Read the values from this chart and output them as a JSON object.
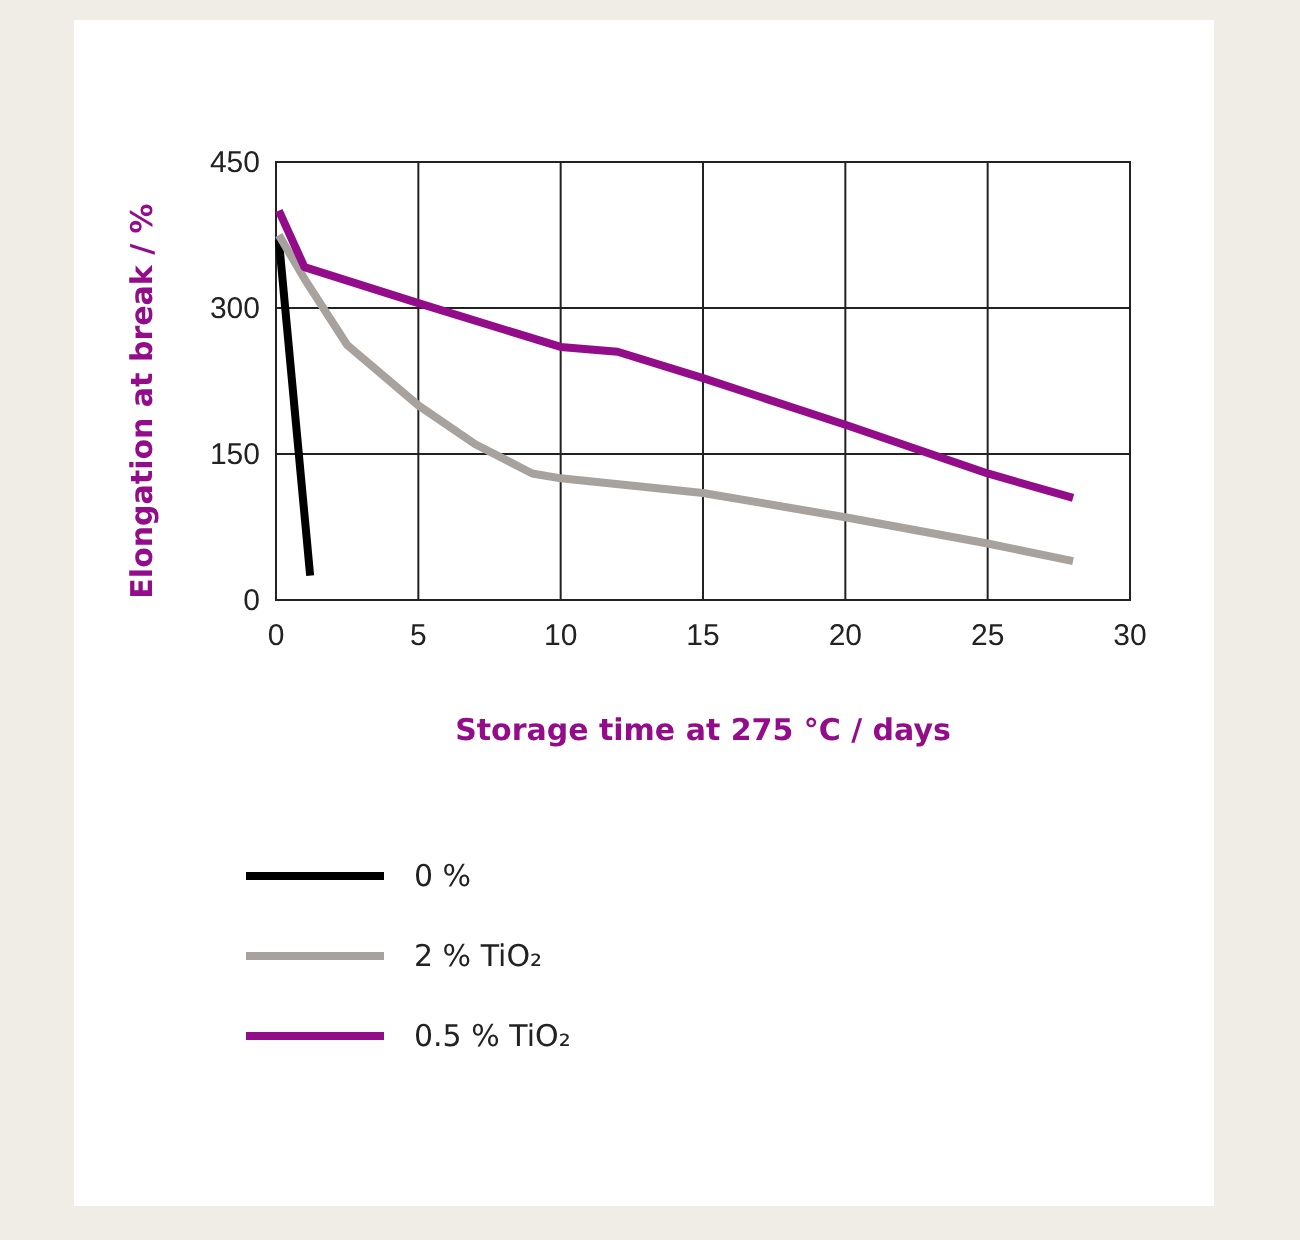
{
  "chart_data": {
    "type": "line",
    "xlabel": "Storage time at 275 °C / days",
    "ylabel": "Elongation at break / %",
    "xlim": [
      0,
      30
    ],
    "xticks": [
      0,
      5,
      10,
      15,
      20,
      25,
      30
    ],
    "ylim": [
      0,
      450
    ],
    "yticks": [
      0,
      150,
      300,
      450
    ],
    "grid": true,
    "legend": "bottom",
    "marker": "none",
    "line_style": "solid",
    "series": [
      {
        "name": "0 %",
        "color": "#000000",
        "x": [
          0.1,
          1.2
        ],
        "values": [
          370,
          25
        ]
      },
      {
        "name": "2 % TiO₂",
        "color": "#a8a29e",
        "x": [
          0.1,
          1,
          2.5,
          5,
          7,
          9,
          10,
          15,
          17,
          20,
          25,
          28
        ],
        "values": [
          375,
          330,
          262,
          200,
          160,
          130,
          125,
          110,
          100,
          85,
          58,
          40
        ]
      },
      {
        "name": "0.5 % TiO₂",
        "color": "#930d8a",
        "x": [
          0.1,
          1,
          5,
          10,
          12,
          15,
          20,
          25,
          28
        ],
        "values": [
          400,
          342,
          305,
          260,
          255,
          228,
          180,
          130,
          105
        ]
      }
    ]
  }
}
